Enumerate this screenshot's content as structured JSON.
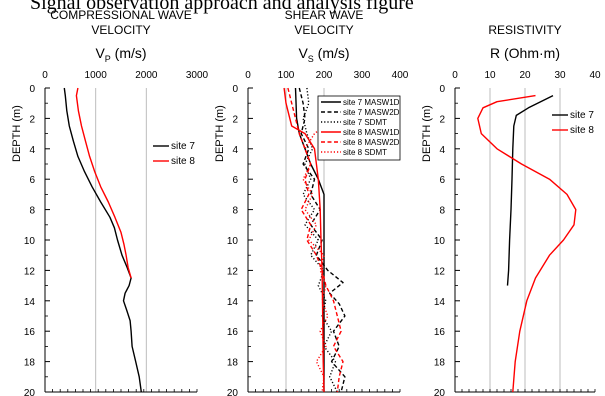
{
  "figure": {
    "cutoff_text": "Signal observation approach and analysis figure"
  },
  "chart_data": [
    {
      "type": "line",
      "title_lines": [
        "COMPRESSIONAL WAVE",
        "VELOCITY"
      ],
      "xlabel_main": "V",
      "xlabel_sub": "P",
      "xlabel_unit": " (m/s)",
      "ylabel": "DEPTH (m)",
      "xlim": [
        0,
        3000
      ],
      "ylim": [
        20,
        0
      ],
      "x_ticks": [
        "0",
        "1000",
        "2000",
        "3000"
      ],
      "y_ticks": [
        "0",
        "2",
        "4",
        "6",
        "8",
        "10",
        "12",
        "14",
        "16",
        "18",
        "20"
      ],
      "vertical_gridlines": [
        1000,
        2000
      ],
      "legend_position": "right",
      "series": [
        {
          "name": "site 7",
          "color": "#000000",
          "dash": "solid",
          "points": [
            [
              380,
              0
            ],
            [
              400,
              0.5
            ],
            [
              430,
              1.5
            ],
            [
              480,
              2.5
            ],
            [
              560,
              3.5
            ],
            [
              650,
              4.5
            ],
            [
              780,
              5.5
            ],
            [
              930,
              6.5
            ],
            [
              1100,
              7.5
            ],
            [
              1280,
              8.5
            ],
            [
              1370,
              9.2
            ],
            [
              1430,
              10
            ],
            [
              1520,
              11
            ],
            [
              1620,
              11.8
            ],
            [
              1700,
              12.5
            ],
            [
              1660,
              13
            ],
            [
              1580,
              13.5
            ],
            [
              1550,
              14
            ],
            [
              1610,
              14.6
            ],
            [
              1680,
              15.3
            ],
            [
              1700,
              16
            ],
            [
              1720,
              17
            ],
            [
              1790,
              18
            ],
            [
              1860,
              19
            ],
            [
              1900,
              20
            ]
          ]
        },
        {
          "name": "site 8",
          "color": "#ff0000",
          "dash": "solid",
          "points": [
            [
              650,
              0
            ],
            [
              620,
              0.5
            ],
            [
              660,
              1.5
            ],
            [
              720,
              2.5
            ],
            [
              800,
              3.5
            ],
            [
              880,
              4.5
            ],
            [
              980,
              5.5
            ],
            [
              1100,
              6.5
            ],
            [
              1250,
              7.5
            ],
            [
              1380,
              8.5
            ],
            [
              1500,
              9.5
            ],
            [
              1560,
              10.3
            ],
            [
              1600,
              11
            ],
            [
              1640,
              11.8
            ],
            [
              1700,
              12.5
            ]
          ]
        }
      ]
    },
    {
      "type": "line",
      "title_lines": [
        "SHEAR WAVE",
        "VELOCITY"
      ],
      "xlabel_main": "V",
      "xlabel_sub": "S",
      "xlabel_unit": " (m/s)",
      "ylabel": "DEPTH (m)",
      "xlim": [
        0,
        400
      ],
      "ylim": [
        20,
        0
      ],
      "x_ticks": [
        "0",
        "100",
        "200",
        "300",
        "400"
      ],
      "y_ticks": [
        "0",
        "2",
        "4",
        "6",
        "8",
        "10",
        "12",
        "14",
        "16",
        "18",
        "20"
      ],
      "vertical_gridlines": [
        100,
        200
      ],
      "legend_position": "top-right",
      "series": [
        {
          "name": "site 7 MASW1D",
          "color": "#000000",
          "dash": "solid",
          "points": [
            [
              125,
              0
            ],
            [
              128,
              2
            ],
            [
              135,
              3
            ],
            [
              150,
              4
            ],
            [
              165,
              5
            ],
            [
              185,
              6
            ],
            [
              200,
              7
            ],
            [
              200,
              20
            ]
          ]
        },
        {
          "name": "site 7 MASW2D",
          "color": "#000000",
          "dash": "dash",
          "points": [
            [
              135,
              0
            ],
            [
              145,
              1
            ],
            [
              150,
              2
            ],
            [
              140,
              3
            ],
            [
              160,
              4
            ],
            [
              145,
              5
            ],
            [
              175,
              6
            ],
            [
              165,
              7
            ],
            [
              190,
              8
            ],
            [
              165,
              9
            ],
            [
              195,
              10
            ],
            [
              180,
              11
            ],
            [
              210,
              12
            ],
            [
              250,
              12.8
            ],
            [
              215,
              13.5
            ],
            [
              240,
              14.2
            ],
            [
              255,
              15
            ],
            [
              225,
              16
            ],
            [
              240,
              17
            ],
            [
              220,
              18
            ],
            [
              255,
              19
            ],
            [
              245,
              20
            ]
          ]
        },
        {
          "name": "site 7 SDMT",
          "color": "#000000",
          "dash": "dot",
          "points": [
            [
              155,
              0
            ],
            [
              160,
              1
            ],
            [
              145,
              2
            ],
            [
              155,
              3
            ],
            [
              170,
              4
            ],
            [
              150,
              5
            ],
            [
              165,
              6
            ],
            [
              145,
              7
            ],
            [
              175,
              8
            ],
            [
              150,
              9
            ],
            [
              185,
              10
            ],
            [
              165,
              11
            ],
            [
              200,
              12
            ],
            [
              185,
              13
            ],
            [
              205,
              14
            ],
            [
              195,
              15
            ],
            [
              210,
              15.6
            ],
            [
              220,
              16
            ],
            [
              200,
              17
            ],
            [
              230,
              18
            ],
            [
              215,
              19
            ],
            [
              235,
              20
            ]
          ]
        },
        {
          "name": "site 8 MASW1D",
          "color": "#ff0000",
          "dash": "solid",
          "points": [
            [
              95,
              0
            ],
            [
              100,
              1
            ],
            [
              110,
              2
            ],
            [
              115,
              2.5
            ],
            [
              150,
              3
            ],
            [
              175,
              4
            ],
            [
              185,
              6
            ],
            [
              190,
              8
            ],
            [
              192,
              10
            ],
            [
              195,
              12
            ],
            [
              197,
              16
            ],
            [
              198,
              18
            ],
            [
              200,
              20
            ]
          ]
        },
        {
          "name": "site 8 MASW2D",
          "color": "#ff0000",
          "dash": "dash",
          "points": [
            [
              105,
              0
            ],
            [
              115,
              1
            ],
            [
              125,
              2
            ],
            [
              135,
              3
            ],
            [
              150,
              4
            ],
            [
              165,
              5
            ],
            [
              150,
              6
            ],
            [
              160,
              7
            ],
            [
              140,
              8
            ],
            [
              165,
              9
            ],
            [
              155,
              10
            ],
            [
              180,
              11
            ],
            [
              195,
              12
            ],
            [
              205,
              13
            ],
            [
              225,
              14
            ],
            [
              235,
              15
            ],
            [
              245,
              16
            ],
            [
              225,
              17
            ],
            [
              250,
              18
            ],
            [
              240,
              19
            ],
            [
              235,
              20
            ]
          ]
        },
        {
          "name": "site 8 SDMT",
          "color": "#ff0000",
          "dash": "dot",
          "points": [
            [
              200,
              1.8
            ],
            [
              210,
              2.3
            ],
            [
              195,
              2.6
            ],
            [
              175,
              3
            ],
            [
              150,
              4
            ],
            [
              165,
              5
            ],
            [
              145,
              6
            ],
            [
              170,
              7
            ],
            [
              150,
              8
            ],
            [
              180,
              9
            ],
            [
              160,
              10
            ],
            [
              200,
              11
            ],
            [
              190,
              12
            ],
            [
              205,
              13
            ],
            [
              195,
              14
            ],
            [
              210,
              15
            ],
            [
              190,
              16
            ],
            [
              205,
              17
            ],
            [
              180,
              18
            ],
            [
              200,
              19
            ],
            [
              195,
              20
            ]
          ]
        }
      ]
    },
    {
      "type": "line",
      "title_lines": [
        "RESISTIVITY"
      ],
      "xlabel_main": "R",
      "xlabel_sub": "",
      "xlabel_unit": " (Ohm·m)",
      "ylabel": "DEPTH (m)",
      "xlim": [
        0,
        40
      ],
      "ylim": [
        20,
        0
      ],
      "x_ticks": [
        "0",
        "10",
        "20",
        "30",
        "40"
      ],
      "y_ticks": [
        "0",
        "2",
        "4",
        "6",
        "8",
        "10",
        "12",
        "14",
        "16",
        "18",
        "20"
      ],
      "vertical_gridlines": [
        10,
        20,
        30
      ],
      "legend_position": "top-right",
      "series": [
        {
          "name": "site 7",
          "color": "#000000",
          "dash": "solid",
          "points": [
            [
              28,
              0.5
            ],
            [
              21,
              1.3
            ],
            [
              17.5,
              1.8
            ],
            [
              16.8,
              2.5
            ],
            [
              16.5,
              4
            ],
            [
              16.3,
              6
            ],
            [
              16.0,
              8
            ],
            [
              15.6,
              10
            ],
            [
              15.3,
              12
            ],
            [
              15.0,
              13
            ]
          ]
        },
        {
          "name": "site 8",
          "color": "#ff0000",
          "dash": "solid",
          "points": [
            [
              23,
              0.5
            ],
            [
              12,
              0.9
            ],
            [
              8,
              1.3
            ],
            [
              6.5,
              2
            ],
            [
              7.5,
              3
            ],
            [
              12,
              4
            ],
            [
              19,
              5
            ],
            [
              27,
              6
            ],
            [
              32,
              7
            ],
            [
              34.5,
              8
            ],
            [
              34,
              9
            ],
            [
              31,
              10
            ],
            [
              27,
              11
            ],
            [
              23,
              12.5
            ],
            [
              20.5,
              14
            ],
            [
              18.5,
              16
            ],
            [
              17.2,
              18
            ],
            [
              16.5,
              20
            ]
          ]
        }
      ]
    }
  ]
}
